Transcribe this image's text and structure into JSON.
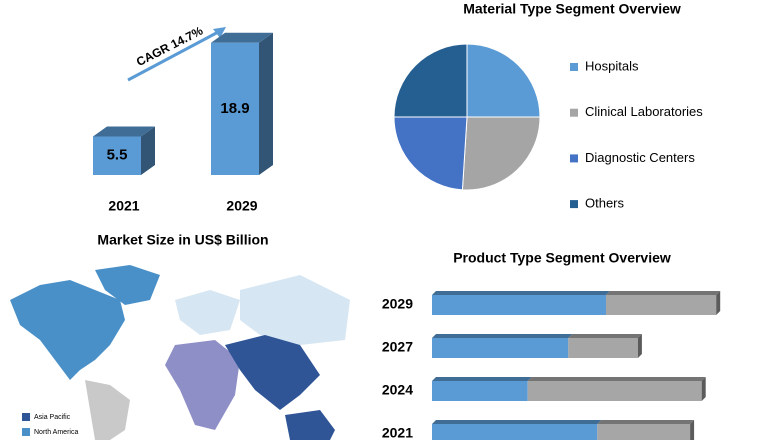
{
  "chart_data": [
    {
      "type": "bar3d",
      "title": "Market Size in US$ Billion",
      "annotation": "CAGR 14.7%",
      "categories": [
        "2021",
        "2029"
      ],
      "values": [
        5.5,
        18.9
      ],
      "color": "#5b9bd5",
      "ylim": [
        0,
        20
      ]
    },
    {
      "type": "pie",
      "title": "Material Type Segment Overview",
      "categories": [
        "Hospitals",
        "Clinical Laboratories",
        "Diagnostic Centers",
        "Others"
      ],
      "values": [
        25,
        26,
        24,
        25
      ],
      "colors": [
        "#5b9bd5",
        "#a5a5a5",
        "#4472c4",
        "#255e91"
      ]
    },
    {
      "type": "hbar_stacked",
      "title": "Product Type  Segment Overview",
      "categories": [
        "2029",
        "2027",
        "2024",
        "2021"
      ],
      "series": [
        {
          "color": "#5b9bd5",
          "values": [
            60,
            47,
            33,
            57
          ]
        },
        {
          "color": "#a6a6a6",
          "values": [
            38,
            24,
            60,
            32
          ]
        }
      ],
      "xlim": [
        0,
        100
      ]
    }
  ],
  "map": {
    "legend": [
      "Asia Pacific",
      "North America"
    ],
    "legend_colors": [
      "#2f5597",
      "#4a90c8"
    ]
  }
}
